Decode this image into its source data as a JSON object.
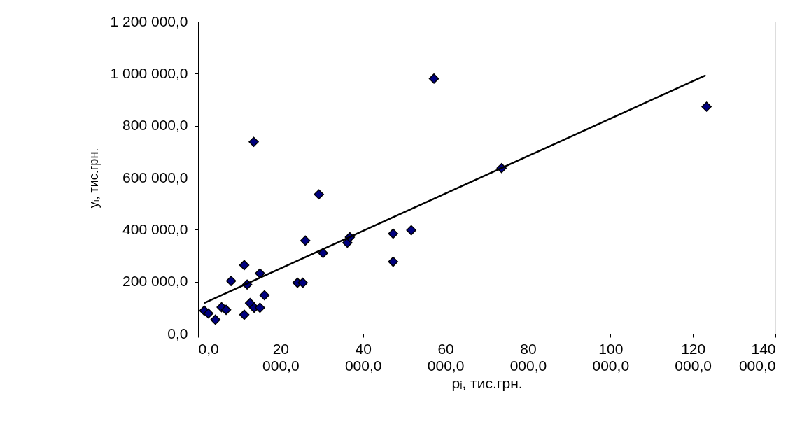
{
  "chart_data": {
    "type": "scatter",
    "xlabel": "pᵢ, тис.грн.",
    "ylabel": "yᵢ, тис.грн.",
    "xlim": [
      0,
      140000
    ],
    "ylim": [
      0,
      1200000
    ],
    "xticks": [
      {
        "value": 0,
        "label": "0,0"
      },
      {
        "value": 20000,
        "label": "20 000,0"
      },
      {
        "value": 40000,
        "label": "40 000,0"
      },
      {
        "value": 60000,
        "label": "60 000,0"
      },
      {
        "value": 80000,
        "label": "80 000,0"
      },
      {
        "value": 100000,
        "label": "100 000,0"
      },
      {
        "value": 120000,
        "label": "120 000,0"
      },
      {
        "value": 140000,
        "label": "140 000,0"
      }
    ],
    "yticks": [
      {
        "value": 0,
        "label": "0,0"
      },
      {
        "value": 200000,
        "label": "200 000,0"
      },
      {
        "value": 400000,
        "label": "400 000,0"
      },
      {
        "value": 600000,
        "label": "600 000,0"
      },
      {
        "value": 800000,
        "label": "800 000,0"
      },
      {
        "value": 1000000,
        "label": "1 000 000,0"
      },
      {
        "value": 1200000,
        "label": "1 200 000,0"
      }
    ],
    "marker": "diamond",
    "grid": false,
    "series": [
      {
        "color": "#000080",
        "x": [
          1500,
          2500,
          4200,
          5700,
          6800,
          8000,
          11200,
          11200,
          11900,
          12600,
          13600,
          15000,
          15000,
          16100,
          24100,
          25400,
          26000,
          30300,
          36200,
          36800,
          47300,
          47300,
          51700,
          13500,
          29300,
          57200,
          73600,
          123300
        ],
        "values": [
          89000,
          78000,
          54000,
          102000,
          92000,
          203000,
          264000,
          73000,
          189000,
          118000,
          100000,
          100000,
          232000,
          148000,
          196000,
          196000,
          358000,
          310000,
          350000,
          371000,
          385000,
          277000,
          398000,
          738000,
          536000,
          981000,
          637000,
          873000
        ]
      },
      {
        "type": "line",
        "color": "#000000",
        "line_style": "solid",
        "marker": "none",
        "x": [
          1500,
          123100
        ],
        "values": [
          118000,
          994000
        ]
      }
    ]
  }
}
